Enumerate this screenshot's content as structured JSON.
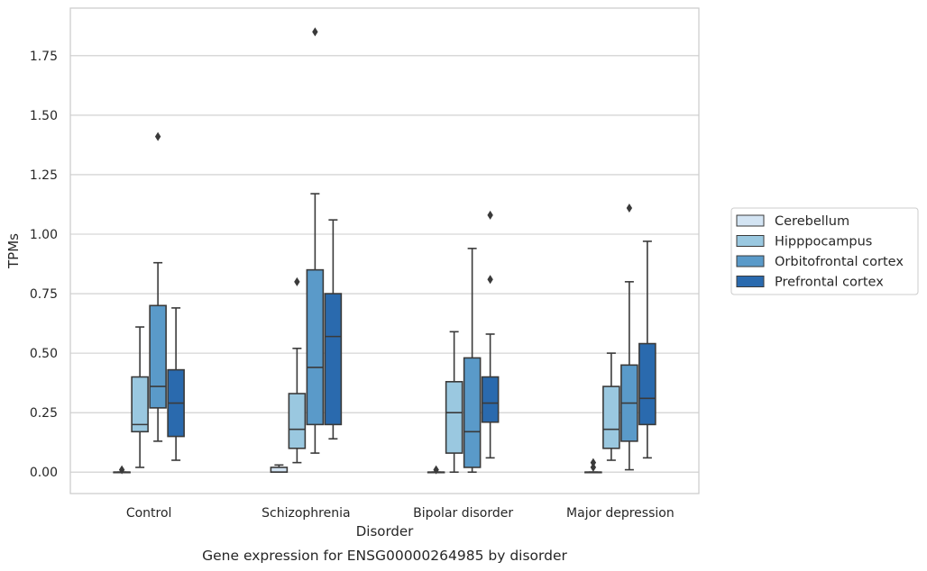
{
  "chart_data": {
    "type": "box",
    "title": "",
    "caption": "Gene expression for ENSG00000264985 by disorder",
    "xlabel": "Disorder",
    "ylabel": "TPMs",
    "ylim": [
      -0.09,
      1.95
    ],
    "yticks": [
      0.0,
      0.25,
      0.5,
      0.75,
      1.0,
      1.25,
      1.5,
      1.75
    ],
    "ytick_labels": [
      "0.00",
      "0.25",
      "0.50",
      "0.75",
      "1.00",
      "1.25",
      "1.50",
      "1.75"
    ],
    "grid": "horizontal",
    "legend_position": "right",
    "categories": [
      "Control",
      "Schizophrenia",
      "Bipolar disorder",
      "Major depression"
    ],
    "series": [
      {
        "name": "Cerebellum",
        "color": "#d3e4f3",
        "boxes": [
          {
            "whislo": 0.0,
            "q1": 0.0,
            "med": 0.0,
            "q3": 0.0,
            "whishi": 0.0,
            "fliers": [
              0.01
            ]
          },
          {
            "whislo": 0.0,
            "q1": 0.0,
            "med": 0.0,
            "q3": 0.02,
            "whishi": 0.03,
            "fliers": []
          },
          {
            "whislo": 0.0,
            "q1": 0.0,
            "med": 0.0,
            "q3": 0.0,
            "whishi": 0.0,
            "fliers": [
              0.01
            ]
          },
          {
            "whislo": 0.0,
            "q1": 0.0,
            "med": 0.0,
            "q3": 0.0,
            "whishi": 0.0,
            "fliers": [
              0.02,
              0.04
            ]
          }
        ]
      },
      {
        "name": "Hipppocampus",
        "color": "#9ac8e0",
        "boxes": [
          {
            "whislo": 0.02,
            "q1": 0.17,
            "med": 0.2,
            "q3": 0.4,
            "whishi": 0.61,
            "fliers": []
          },
          {
            "whislo": 0.04,
            "q1": 0.1,
            "med": 0.18,
            "q3": 0.33,
            "whishi": 0.52,
            "fliers": [
              0.8
            ]
          },
          {
            "whislo": 0.0,
            "q1": 0.08,
            "med": 0.25,
            "q3": 0.38,
            "whishi": 0.59,
            "fliers": []
          },
          {
            "whislo": 0.05,
            "q1": 0.1,
            "med": 0.18,
            "q3": 0.36,
            "whishi": 0.5,
            "fliers": []
          }
        ]
      },
      {
        "name": "Orbitofrontal cortex",
        "color": "#5a9ac9",
        "boxes": [
          {
            "whislo": 0.13,
            "q1": 0.27,
            "med": 0.36,
            "q3": 0.7,
            "whishi": 0.88,
            "fliers": [
              1.41
            ]
          },
          {
            "whislo": 0.08,
            "q1": 0.2,
            "med": 0.44,
            "q3": 0.85,
            "whishi": 1.17,
            "fliers": [
              1.85
            ]
          },
          {
            "whislo": 0.0,
            "q1": 0.02,
            "med": 0.17,
            "q3": 0.48,
            "whishi": 0.94,
            "fliers": []
          },
          {
            "whislo": 0.01,
            "q1": 0.13,
            "med": 0.29,
            "q3": 0.45,
            "whishi": 0.8,
            "fliers": [
              1.11
            ]
          }
        ]
      },
      {
        "name": "Prefrontal cortex",
        "color": "#2a6aae",
        "boxes": [
          {
            "whislo": 0.05,
            "q1": 0.15,
            "med": 0.29,
            "q3": 0.43,
            "whishi": 0.69,
            "fliers": []
          },
          {
            "whislo": 0.14,
            "q1": 0.2,
            "med": 0.57,
            "q3": 0.75,
            "whishi": 1.06,
            "fliers": []
          },
          {
            "whislo": 0.06,
            "q1": 0.21,
            "med": 0.29,
            "q3": 0.4,
            "whishi": 0.58,
            "fliers": [
              0.81,
              1.08
            ]
          },
          {
            "whislo": 0.06,
            "q1": 0.2,
            "med": 0.31,
            "q3": 0.54,
            "whishi": 0.97,
            "fliers": []
          }
        ]
      }
    ]
  }
}
